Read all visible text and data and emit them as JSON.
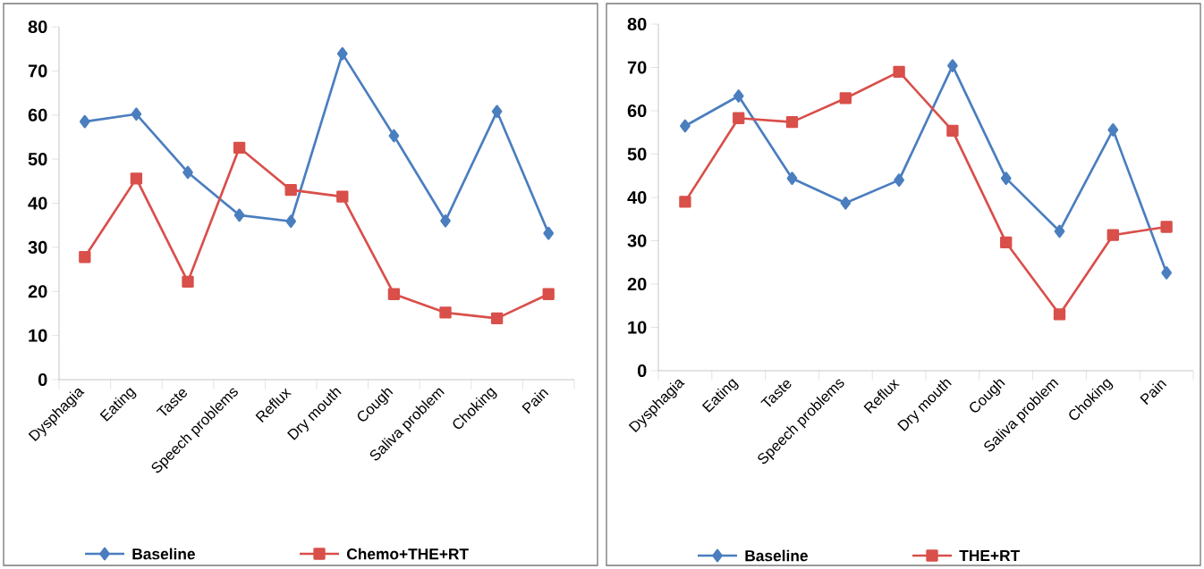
{
  "chart_data": [
    {
      "type": "line",
      "categories": [
        "Dysphagia",
        "Eating",
        "Taste",
        "Speech problems",
        "Reflux",
        "Dry mouth",
        "Cough",
        "Saliva problem",
        "Choking",
        "Pain"
      ],
      "series": [
        {
          "name": "Baseline",
          "color": "#4a7ebf",
          "marker": "diamond",
          "values": [
            58.5,
            60.2,
            47,
            37.3,
            35.9,
            73.9,
            55.3,
            36,
            60.8,
            33.2
          ]
        },
        {
          "name": "Chemo+THE+RT",
          "color": "#d94f4a",
          "marker": "square",
          "values": [
            27.8,
            45.6,
            22.2,
            52.6,
            43,
            41.5,
            19.4,
            15.2,
            13.9,
            19.4
          ]
        }
      ],
      "ylim": [
        0,
        80
      ],
      "yticks": [
        0,
        10,
        20,
        30,
        40,
        50,
        60,
        70,
        80
      ],
      "legend": "bottom",
      "line_style": "solid"
    },
    {
      "type": "line",
      "categories": [
        "Dysphagia",
        "Eating",
        "Taste",
        "Speech problems",
        "Reflux",
        "Dry mouth",
        "Cough",
        "Saliva problem",
        "Choking",
        "Pain"
      ],
      "series": [
        {
          "name": "Baseline",
          "color": "#4a7ebf",
          "marker": "diamond",
          "values": [
            56.5,
            63.4,
            44.4,
            38.7,
            44,
            70.4,
            44.4,
            32.2,
            55.6,
            22.6
          ]
        },
        {
          "name": "THE+RT",
          "color": "#d94f4a",
          "marker": "square",
          "values": [
            39,
            58.3,
            57.4,
            62.9,
            69,
            55.4,
            29.6,
            13,
            31.3,
            33.2
          ]
        }
      ],
      "ylim": [
        0,
        80
      ],
      "yticks": [
        0,
        10,
        20,
        30,
        40,
        50,
        60,
        70,
        80
      ],
      "legend": "bottom",
      "line_style": "solid"
    }
  ]
}
